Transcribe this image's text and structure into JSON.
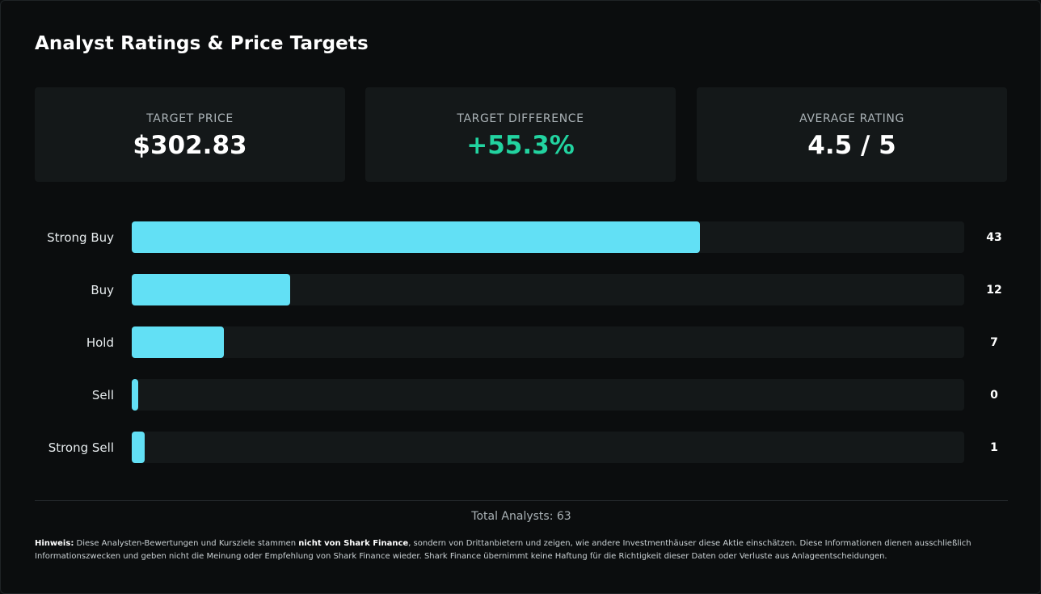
{
  "title": "Analyst Ratings & Price Targets",
  "cards": [
    {
      "label": "TARGET PRICE",
      "value": "$302.83"
    },
    {
      "label": "TARGET DIFFERENCE",
      "value": "+55.3%",
      "color": "#22d3a0"
    },
    {
      "label": "AVERAGE RATING",
      "value": "4.5 / 5"
    }
  ],
  "colors": {
    "bar": "#62e0f5",
    "track": "#141819",
    "positive": "#22d3a0",
    "background": "#0b0d0e"
  },
  "chart_data": {
    "type": "bar",
    "orientation": "horizontal",
    "categories": [
      "Strong Buy",
      "Buy",
      "Hold",
      "Sell",
      "Strong Sell"
    ],
    "values": [
      43,
      12,
      7,
      0,
      1
    ],
    "value_labels": [
      "43",
      "12",
      "7",
      "0",
      "1"
    ],
    "total": 63
  },
  "total_text": "Total Analysts: 63",
  "note": {
    "lead": "Hinweis:",
    "part1": " Diese Analysten-Bewertungen und Kursziele stammen ",
    "bold": "nicht von Shark Finance",
    "part2": ", sondern von Drittanbietern und zeigen, wie andere Investmenthäuser diese Aktie einschätzen. Diese Informationen dienen ausschließlich Informationszwecken und geben nicht die Meinung oder Empfehlung von Shark Finance wieder. Shark Finance übernimmt keine Haftung für die Richtigkeit dieser Daten oder Verluste aus Anlageentscheidungen."
  }
}
